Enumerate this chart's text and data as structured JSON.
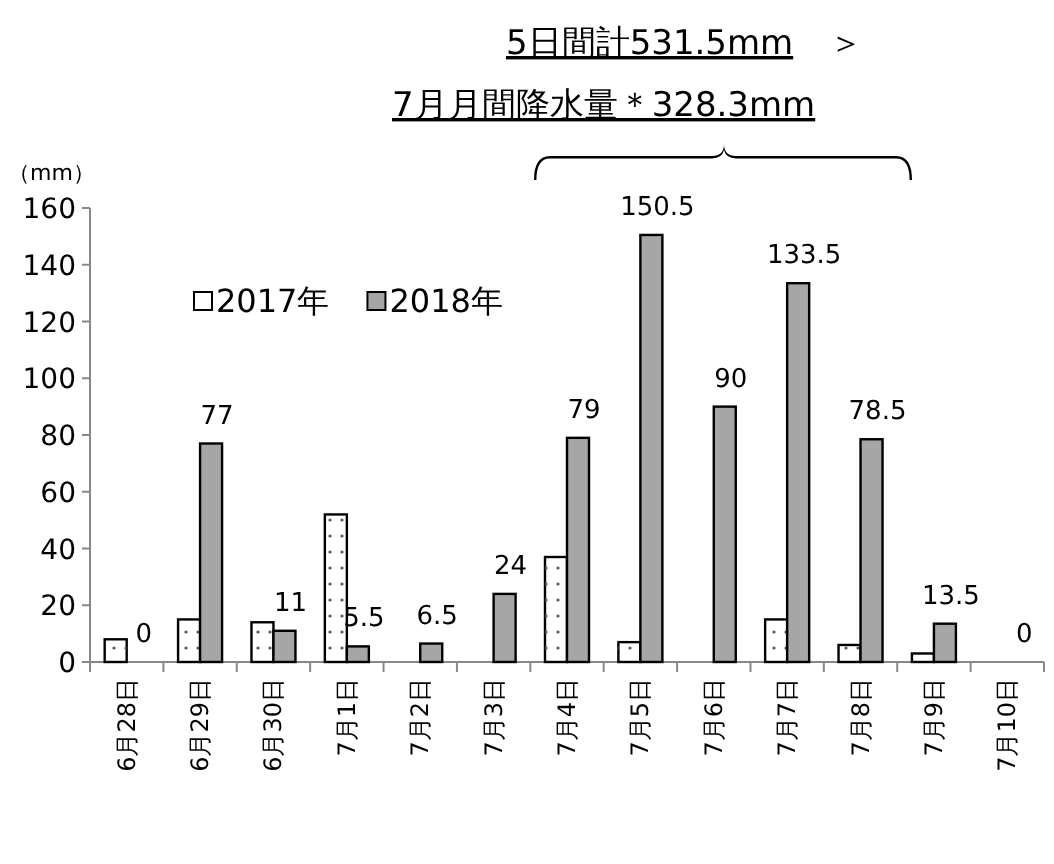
{
  "chart_data": {
    "type": "bar",
    "title": "5日間計531.5mm ＞",
    "subtitle": "7月月間降水量＊328.3mm",
    "ylabel": "（mm）",
    "categories": [
      "6月28日",
      "6月29日",
      "6月30日",
      "7月1日",
      "7月2日",
      "7月3日",
      "7月4日",
      "7月5日",
      "7月6日",
      "7月7日",
      "7月8日",
      "7月9日",
      "7月10日"
    ],
    "series": [
      {
        "name": "2017年",
        "color": "#ffffff",
        "values": [
          8,
          15,
          14,
          52,
          0,
          0,
          37,
          7,
          0,
          15,
          6,
          3,
          0
        ]
      },
      {
        "name": "2018年",
        "color": "#a6a6a6",
        "values": [
          0,
          77,
          11,
          5.5,
          6.5,
          24,
          79,
          150.5,
          90,
          133.5,
          78.5,
          13.5,
          0
        ],
        "value_labels": [
          "0",
          "77",
          "11",
          "5.5",
          "6.5",
          "24",
          "79",
          "150.5",
          "90",
          "133.5",
          "78.5",
          "13.5",
          "0"
        ]
      }
    ],
    "ylim": [
      0,
      160
    ],
    "yticks": [
      0,
      20,
      40,
      60,
      80,
      100,
      120,
      140,
      160
    ],
    "grid": false,
    "legend": "top left"
  }
}
